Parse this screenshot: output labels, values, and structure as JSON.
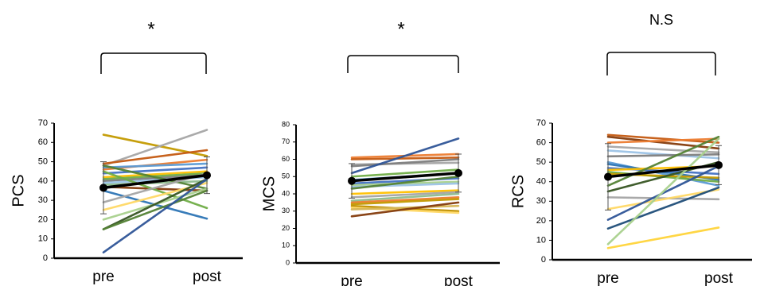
{
  "chart_data": [
    {
      "type": "line",
      "ylabel": "PCS",
      "categories": [
        "pre",
        "post"
      ],
      "ylim": [
        0,
        70
      ],
      "yticks": [
        0,
        10,
        20,
        30,
        40,
        50,
        60,
        70
      ],
      "significance": "*",
      "mean": {
        "values": [
          36.5,
          43
        ],
        "sd": [
          13.5,
          9.5
        ],
        "color": "#000000"
      },
      "series": [
        {
          "values": [
            64,
            53
          ],
          "color": "#C49A00"
        },
        {
          "values": [
            48,
            66.5
          ],
          "color": "#A6A6A6"
        },
        {
          "values": [
            49,
            56
          ],
          "color": "#C55A11"
        },
        {
          "values": [
            46,
            51
          ],
          "color": "#ED7D31"
        },
        {
          "values": [
            47,
            49
          ],
          "color": "#5B9BD5"
        },
        {
          "values": [
            44,
            47
          ],
          "color": "#4472C4"
        },
        {
          "values": [
            42,
            45
          ],
          "color": "#FFC000"
        },
        {
          "values": [
            41,
            44
          ],
          "color": "#70AD47"
        },
        {
          "values": [
            40,
            43
          ],
          "color": "#7F7F7F"
        },
        {
          "values": [
            39,
            42
          ],
          "color": "#9DC3E6"
        },
        {
          "values": [
            38,
            40
          ],
          "color": "#8FBC8F"
        },
        {
          "values": [
            37,
            35
          ],
          "color": "#843C0C"
        },
        {
          "values": [
            48,
            36
          ],
          "color": "#548235"
        },
        {
          "values": [
            45,
            26
          ],
          "color": "#70AD47"
        },
        {
          "values": [
            35,
            20.5
          ],
          "color": "#2E75B6"
        },
        {
          "values": [
            29,
            44
          ],
          "color": "#A5A5A5"
        },
        {
          "values": [
            25,
            39
          ],
          "color": "#FFD966"
        },
        {
          "values": [
            20,
            36
          ],
          "color": "#A9D18E"
        },
        {
          "values": [
            15,
            41
          ],
          "color": "#375623"
        },
        {
          "values": [
            15,
            35
          ],
          "color": "#548235"
        },
        {
          "values": [
            3,
            41
          ],
          "color": "#2F5597"
        }
      ]
    },
    {
      "type": "line",
      "ylabel": "MCS",
      "categories": [
        "pre",
        "post"
      ],
      "ylim": [
        0,
        80
      ],
      "yticks": [
        0,
        10,
        20,
        30,
        40,
        50,
        60,
        70,
        80
      ],
      "significance": "*",
      "mean": {
        "values": [
          47.5,
          52
        ],
        "sd": [
          10,
          11
        ],
        "color": "#000000"
      },
      "series": [
        {
          "values": [
            61,
            63
          ],
          "color": "#ED7D31"
        },
        {
          "values": [
            60,
            61
          ],
          "color": "#C55A11"
        },
        {
          "values": [
            57,
            58
          ],
          "color": "#A6A6A6"
        },
        {
          "values": [
            56,
            60
          ],
          "color": "#7F7F7F"
        },
        {
          "values": [
            52,
            72
          ],
          "color": "#2F5597"
        },
        {
          "values": [
            50,
            54
          ],
          "color": "#70AD47"
        },
        {
          "values": [
            48,
            52
          ],
          "color": "#5B9BD5"
        },
        {
          "values": [
            46,
            49
          ],
          "color": "#4472C4"
        },
        {
          "values": [
            45,
            47
          ],
          "color": "#A9D18E"
        },
        {
          "values": [
            44,
            46
          ],
          "color": "#9DC3E6"
        },
        {
          "values": [
            43,
            50
          ],
          "color": "#548235"
        },
        {
          "values": [
            40,
            42
          ],
          "color": "#FFC000"
        },
        {
          "values": [
            38,
            41
          ],
          "color": "#A5A5A5"
        },
        {
          "values": [
            36,
            40
          ],
          "color": "#8FBC8F"
        },
        {
          "values": [
            35,
            38
          ],
          "color": "#ED7D31"
        },
        {
          "values": [
            34,
            37
          ],
          "color": "#C49A00"
        },
        {
          "values": [
            33,
            30
          ],
          "color": "#BF9000"
        },
        {
          "values": [
            32,
            29
          ],
          "color": "#FFD966"
        },
        {
          "values": [
            31,
            33
          ],
          "color": "#D6B656"
        },
        {
          "values": [
            27,
            35
          ],
          "color": "#843C0C"
        }
      ]
    },
    {
      "type": "line",
      "ylabel": "RCS",
      "categories": [
        "pre",
        "post"
      ],
      "ylim": [
        0,
        70
      ],
      "yticks": [
        0,
        10,
        20,
        30,
        40,
        50,
        60,
        70
      ],
      "significance": "N.S",
      "mean": {
        "values": [
          42.5,
          48.5
        ],
        "sd": [
          17,
          10
        ],
        "color": "#000000"
      },
      "series": [
        {
          "values": [
            64,
            60
          ],
          "color": "#C55A11"
        },
        {
          "values": [
            63,
            57
          ],
          "color": "#843C0C"
        },
        {
          "values": [
            60,
            62
          ],
          "color": "#ED7D31"
        },
        {
          "values": [
            58,
            55
          ],
          "color": "#A6A6A6"
        },
        {
          "values": [
            56,
            52
          ],
          "color": "#9DC3E6"
        },
        {
          "values": [
            53,
            54
          ],
          "color": "#7F7F7F"
        },
        {
          "values": [
            50,
            38
          ],
          "color": "#5B9BD5"
        },
        {
          "values": [
            49,
            41
          ],
          "color": "#2E75B6"
        },
        {
          "values": [
            47,
            44
          ],
          "color": "#4472C4"
        },
        {
          "values": [
            46,
            48
          ],
          "color": "#FFC000"
        },
        {
          "values": [
            45,
            40
          ],
          "color": "#70AD47"
        },
        {
          "values": [
            44,
            42
          ],
          "color": "#C49A00"
        },
        {
          "values": [
            38,
            63
          ],
          "color": "#548235"
        },
        {
          "values": [
            35,
            50
          ],
          "color": "#375623"
        },
        {
          "values": [
            32,
            31
          ],
          "color": "#A5A5A5"
        },
        {
          "values": [
            26,
            36
          ],
          "color": "#FFD966"
        },
        {
          "values": [
            20.5,
            48
          ],
          "color": "#2F5597"
        },
        {
          "values": [
            16,
            37
          ],
          "color": "#1F4E79"
        },
        {
          "values": [
            8,
            62
          ],
          "color": "#A9D18E"
        },
        {
          "values": [
            6,
            16.5
          ],
          "color": "#FFD43B"
        }
      ]
    }
  ]
}
